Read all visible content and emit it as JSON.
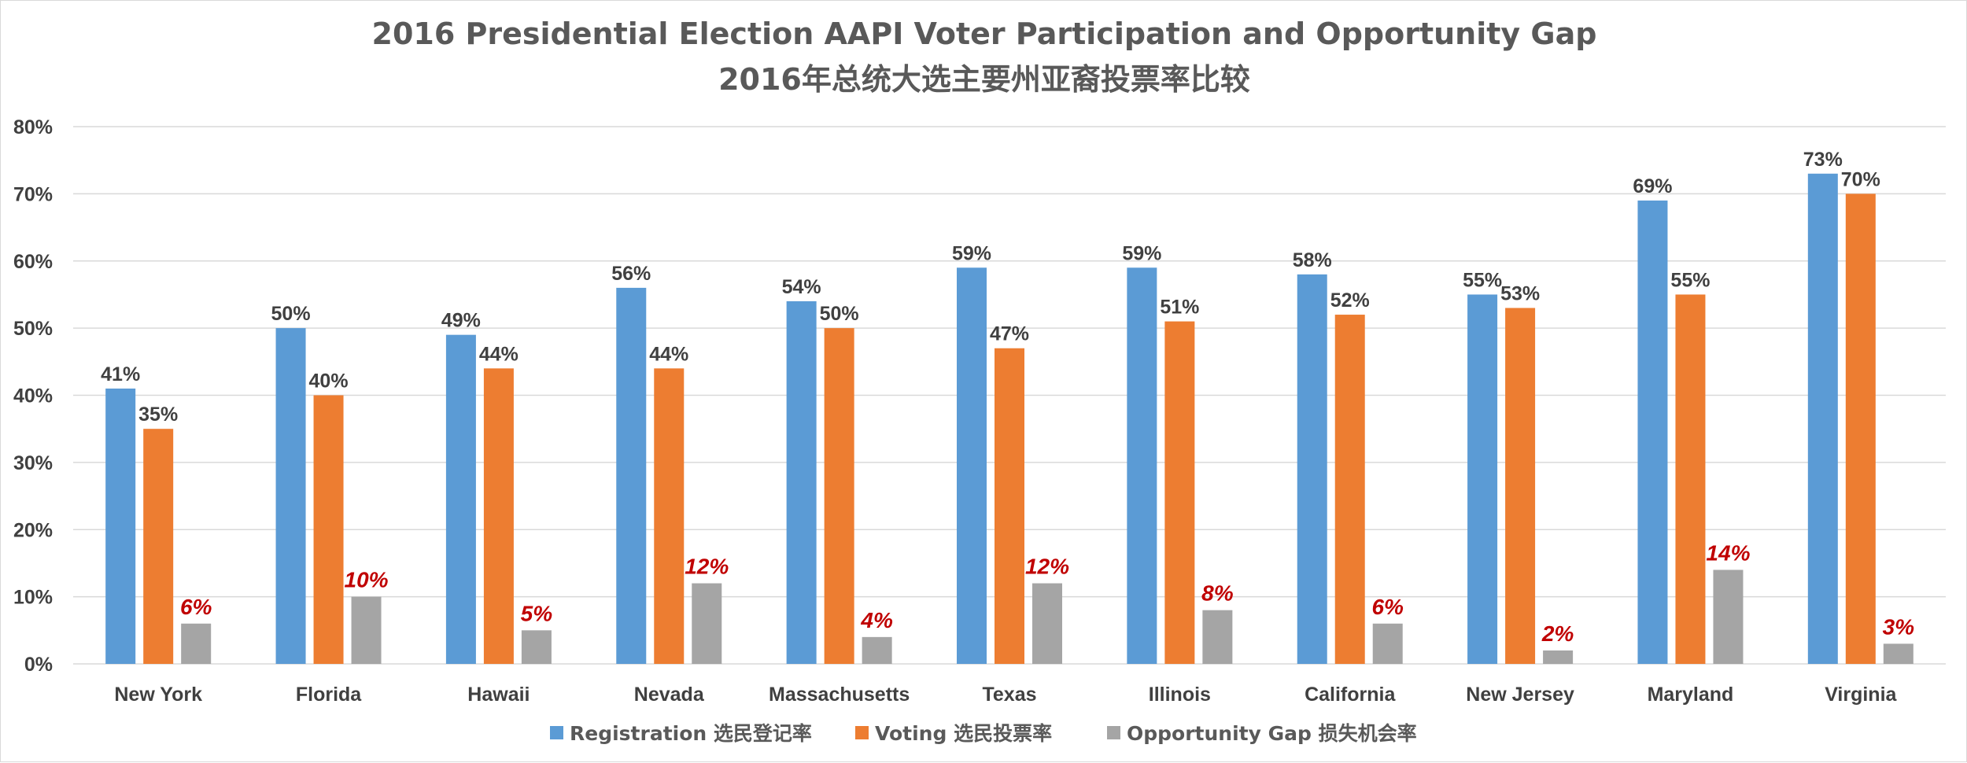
{
  "chart_data": {
    "type": "bar",
    "title": "2016 Presidential Election AAPI Voter Participation and Opportunity Gap",
    "subtitle": "2016年总统大选主要州亚裔投票率比较",
    "xlabel": "",
    "ylabel": "",
    "ylim": [
      0,
      80
    ],
    "ytick_labels": [
      "0%",
      "10%",
      "20%",
      "30%",
      "40%",
      "50%",
      "60%",
      "70%",
      "80%"
    ],
    "grid": true,
    "legend_position": "bottom",
    "categories": [
      "New York",
      "Florida",
      "Hawaii",
      "Nevada",
      "Massachusetts",
      "Texas",
      "Illinois",
      "California",
      "New Jersey",
      "Maryland",
      "Virginia"
    ],
    "series": [
      {
        "name": "Registration 选民登记率",
        "color": "#5b9bd5",
        "values": [
          41,
          50,
          49,
          56,
          54,
          59,
          59,
          58,
          55,
          69,
          73
        ],
        "labels": [
          "41%",
          "50%",
          "49%",
          "56%",
          "54%",
          "59%",
          "59%",
          "58%",
          "55%",
          "69%",
          "73%"
        ]
      },
      {
        "name": "Voting 选民投票率",
        "color": "#ed7d31",
        "values": [
          35,
          40,
          44,
          44,
          50,
          47,
          51,
          52,
          53,
          55,
          70
        ],
        "labels": [
          "35%",
          "40%",
          "44%",
          "44%",
          "50%",
          "47%",
          "51%",
          "52%",
          "53%",
          "55%",
          "70%"
        ]
      },
      {
        "name": "Opportunity Gap 损失机会率",
        "color": "#a5a5a5",
        "label_color": "#c00000",
        "values": [
          6,
          10,
          5,
          12,
          4,
          12,
          8,
          6,
          2,
          14,
          3
        ],
        "labels": [
          "6%",
          "10%",
          "5%",
          "12%",
          "4%",
          "12%",
          "8%",
          "6%",
          "2%",
          "14%",
          "3%"
        ]
      }
    ]
  }
}
